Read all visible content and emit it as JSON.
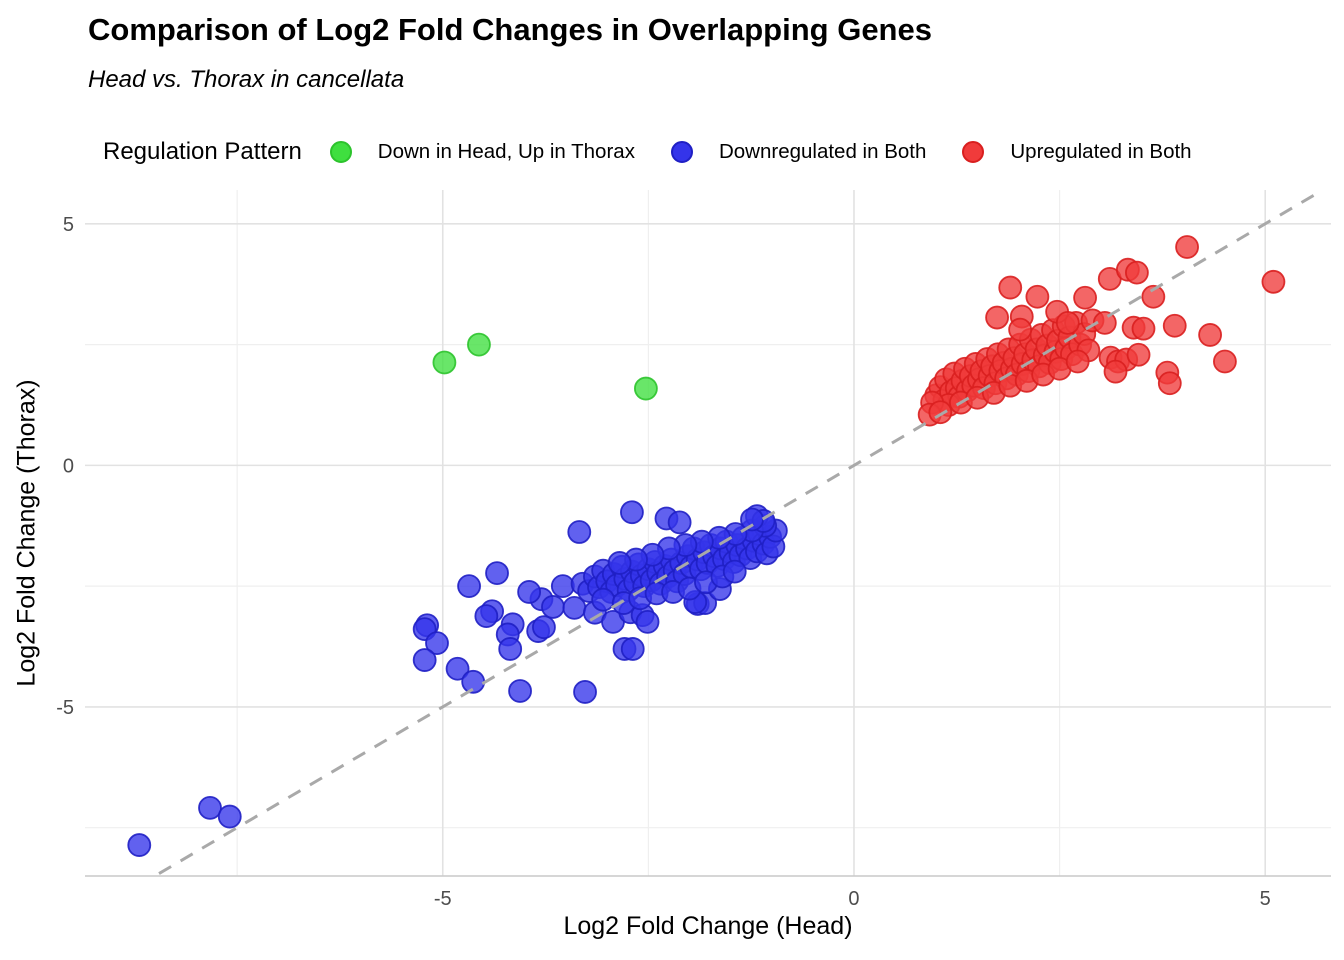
{
  "title": "Comparison of Log2 Fold Changes in Overlapping Genes",
  "subtitle": "Head vs. Thorax in cancellata",
  "legend": {
    "title": "Regulation Pattern",
    "items": [
      {
        "label": "Down in Head, Up in Thorax",
        "fill": "#3fdf3f",
        "stroke": "#2cc32c"
      },
      {
        "label": "Downregulated in Both",
        "fill": "#3434ea",
        "stroke": "#1f1fc4"
      },
      {
        "label": "Upregulated in Both",
        "fill": "#f03b3b",
        "stroke": "#d91f1f"
      }
    ]
  },
  "chart_data": {
    "type": "scatter",
    "title": "Comparison of Log2 Fold Changes in Overlapping Genes",
    "subtitle": "Head vs. Thorax in cancellata",
    "xlabel": "Log2 Fold Change (Head)",
    "ylabel": "Log2 Fold Change (Thorax)",
    "xlim": [
      -9.35,
      5.8
    ],
    "ylim": [
      -8.5,
      5.7
    ],
    "x_ticks": [
      -5,
      0,
      5
    ],
    "x_tick_labels": [
      "-5",
      "0",
      "5"
    ],
    "y_ticks": [
      5,
      0,
      -5
    ],
    "y_tick_labels": [
      "5",
      "0",
      "-5"
    ],
    "x_minor_ticks": [
      -7.5,
      -2.5,
      2.5
    ],
    "y_minor_ticks": [
      2.5,
      -2.5,
      -7.5
    ],
    "grid": true,
    "grid_major_color": "#e2e2e2",
    "grid_minor_color": "#efefef",
    "axis_line_color": "#c9c9c9",
    "tick_label_color": "#4d4d4d",
    "identity_line": {
      "equation": "y = x",
      "style": "dashed",
      "color": "#a9a9a9",
      "from": -8.45,
      "to": 5.7
    },
    "point_radius": 11,
    "point_fill_opacity": 0.78,
    "legend_position": "top",
    "series": [
      {
        "name": "Down in Head, Up in Thorax",
        "fill": "#3fdf3f",
        "stroke": "#2cc32c",
        "points": [
          [
            -4.98,
            2.13
          ],
          [
            -4.56,
            2.5
          ],
          [
            -2.53,
            1.59
          ]
        ]
      },
      {
        "name": "Downregulated in Both",
        "fill": "#3434ea",
        "stroke": "#1f1fc4",
        "points": [
          [
            -8.69,
            -7.86
          ],
          [
            -7.83,
            -7.09
          ],
          [
            -7.59,
            -7.27
          ],
          [
            -5.19,
            -3.31
          ],
          [
            -5.22,
            -3.39
          ],
          [
            -5.07,
            -3.68
          ],
          [
            -5.22,
            -4.03
          ],
          [
            -4.82,
            -4.21
          ],
          [
            -4.63,
            -4.48
          ],
          [
            -4.68,
            -2.5
          ],
          [
            -4.34,
            -2.23
          ],
          [
            -4.4,
            -3.02
          ],
          [
            -4.47,
            -3.12
          ],
          [
            -4.15,
            -3.29
          ],
          [
            -4.21,
            -3.5
          ],
          [
            -4.18,
            -3.8
          ],
          [
            -4.06,
            -4.67
          ],
          [
            -3.84,
            -3.43
          ],
          [
            -3.77,
            -3.35
          ],
          [
            -3.27,
            -4.69
          ],
          [
            -3.8,
            -2.77
          ],
          [
            -3.66,
            -2.93
          ],
          [
            -3.54,
            -2.5
          ],
          [
            -3.95,
            -2.62
          ],
          [
            -3.4,
            -2.95
          ],
          [
            -3.15,
            -3.05
          ],
          [
            -2.93,
            -3.24
          ],
          [
            -2.72,
            -3.04
          ],
          [
            -2.57,
            -3.1
          ],
          [
            -2.51,
            -3.24
          ],
          [
            -2.79,
            -3.8
          ],
          [
            -2.69,
            -3.8
          ],
          [
            -1.9,
            -2.87
          ],
          [
            -1.81,
            -2.85
          ],
          [
            -1.93,
            -2.83
          ],
          [
            -1.63,
            -2.56
          ],
          [
            -2.7,
            -0.97
          ],
          [
            -3.34,
            -1.38
          ],
          [
            -2.28,
            -1.1
          ],
          [
            -2.12,
            -1.18
          ],
          [
            -3.3,
            -2.45
          ],
          [
            -3.22,
            -2.6
          ],
          [
            -3.15,
            -2.3
          ],
          [
            -3.1,
            -2.52
          ],
          [
            -3.05,
            -2.18
          ],
          [
            -3.0,
            -2.4
          ],
          [
            -2.95,
            -2.62
          ],
          [
            -2.92,
            -2.25
          ],
          [
            -2.88,
            -2.48
          ],
          [
            -2.82,
            -2.1
          ],
          [
            -2.78,
            -2.35
          ],
          [
            -2.74,
            -2.58
          ],
          [
            -2.7,
            -2.2
          ],
          [
            -2.66,
            -2.42
          ],
          [
            -2.62,
            -2.05
          ],
          [
            -2.58,
            -2.28
          ],
          [
            -2.55,
            -2.5
          ],
          [
            -2.5,
            -2.15
          ],
          [
            -2.46,
            -2.38
          ],
          [
            -2.42,
            -2.0
          ],
          [
            -2.38,
            -2.22
          ],
          [
            -2.35,
            -2.45
          ],
          [
            -2.3,
            -2.08
          ],
          [
            -2.26,
            -2.3
          ],
          [
            -2.22,
            -1.95
          ],
          [
            -2.18,
            -2.18
          ],
          [
            -2.15,
            -2.4
          ],
          [
            -2.1,
            -2.02
          ],
          [
            -2.06,
            -2.25
          ],
          [
            -2.02,
            -1.88
          ],
          [
            -1.98,
            -2.1
          ],
          [
            -1.95,
            -1.72
          ],
          [
            -1.9,
            -1.95
          ],
          [
            -1.86,
            -2.15
          ],
          [
            -1.82,
            -1.8
          ],
          [
            -1.78,
            -2.02
          ],
          [
            -1.74,
            -1.65
          ],
          [
            -1.7,
            -1.88
          ],
          [
            -1.66,
            -2.08
          ],
          [
            -1.62,
            -1.72
          ],
          [
            -1.58,
            -1.94
          ],
          [
            -1.55,
            -1.58
          ],
          [
            -1.5,
            -1.8
          ],
          [
            -1.46,
            -2.0
          ],
          [
            -1.42,
            -1.65
          ],
          [
            -1.38,
            -1.86
          ],
          [
            -1.35,
            -1.5
          ],
          [
            -1.3,
            -1.72
          ],
          [
            -1.26,
            -1.92
          ],
          [
            -1.22,
            -1.56
          ],
          [
            -1.18,
            -1.78
          ],
          [
            -1.15,
            -1.42
          ],
          [
            -1.1,
            -1.62
          ],
          [
            -1.06,
            -1.82
          ],
          [
            -1.02,
            -1.48
          ],
          [
            -0.98,
            -1.68
          ],
          [
            -0.95,
            -1.35
          ],
          [
            -1.08,
            -1.25
          ],
          [
            -1.24,
            -1.35
          ],
          [
            -1.44,
            -1.42
          ],
          [
            -1.64,
            -1.5
          ],
          [
            -1.85,
            -1.58
          ],
          [
            -2.05,
            -1.65
          ],
          [
            -2.25,
            -1.72
          ],
          [
            -2.45,
            -1.85
          ],
          [
            -2.65,
            -1.95
          ],
          [
            -2.85,
            -2.02
          ],
          [
            -3.05,
            -2.78
          ],
          [
            -2.8,
            -2.85
          ],
          [
            -2.6,
            -2.75
          ],
          [
            -2.4,
            -2.65
          ],
          [
            -2.2,
            -2.62
          ],
          [
            -2.0,
            -2.55
          ],
          [
            -1.8,
            -2.42
          ],
          [
            -1.6,
            -2.3
          ],
          [
            -1.45,
            -2.2
          ],
          [
            -1.18,
            -1.05
          ],
          [
            -1.1,
            -1.15
          ],
          [
            -1.24,
            -1.12
          ]
        ]
      },
      {
        "name": "Upregulated in Both",
        "fill": "#f03b3b",
        "stroke": "#d91f1f",
        "points": [
          [
            1.0,
            1.45
          ],
          [
            1.05,
            1.62
          ],
          [
            1.1,
            1.35
          ],
          [
            1.12,
            1.78
          ],
          [
            1.18,
            1.52
          ],
          [
            1.22,
            1.9
          ],
          [
            1.25,
            1.6
          ],
          [
            1.28,
            1.42
          ],
          [
            1.32,
            1.75
          ],
          [
            1.35,
            2.0
          ],
          [
            1.38,
            1.55
          ],
          [
            1.42,
            1.85
          ],
          [
            1.45,
            1.65
          ],
          [
            1.48,
            2.1
          ],
          [
            1.52,
            1.78
          ],
          [
            1.55,
            1.95
          ],
          [
            1.58,
            1.6
          ],
          [
            1.62,
            2.2
          ],
          [
            1.65,
            1.85
          ],
          [
            1.68,
            2.05
          ],
          [
            1.72,
            1.7
          ],
          [
            1.75,
            2.3
          ],
          [
            1.78,
            1.95
          ],
          [
            1.82,
            2.12
          ],
          [
            1.85,
            1.8
          ],
          [
            1.88,
            2.4
          ],
          [
            1.92,
            2.0
          ],
          [
            1.95,
            2.22
          ],
          [
            1.98,
            1.88
          ],
          [
            2.02,
            2.5
          ],
          [
            2.05,
            2.1
          ],
          [
            2.08,
            2.3
          ],
          [
            2.12,
            1.95
          ],
          [
            2.15,
            2.6
          ],
          [
            2.18,
            2.18
          ],
          [
            2.22,
            2.4
          ],
          [
            2.25,
            2.05
          ],
          [
            2.28,
            2.7
          ],
          [
            2.32,
            2.28
          ],
          [
            2.35,
            2.48
          ],
          [
            2.38,
            2.12
          ],
          [
            2.42,
            2.8
          ],
          [
            2.45,
            2.35
          ],
          [
            2.48,
            2.58
          ],
          [
            2.52,
            2.2
          ],
          [
            2.55,
            2.88
          ],
          [
            2.58,
            2.42
          ],
          [
            2.62,
            2.65
          ],
          [
            2.65,
            2.3
          ],
          [
            2.7,
            2.95
          ],
          [
            2.75,
            2.5
          ],
          [
            2.8,
            2.72
          ],
          [
            2.85,
            2.38
          ],
          [
            2.9,
            3.0
          ],
          [
            1.15,
            1.25
          ],
          [
            1.3,
            1.3
          ],
          [
            1.5,
            1.4
          ],
          [
            1.7,
            1.5
          ],
          [
            1.9,
            1.65
          ],
          [
            2.1,
            1.75
          ],
          [
            2.3,
            1.88
          ],
          [
            2.5,
            2.0
          ],
          [
            2.72,
            2.15
          ],
          [
            0.95,
            1.3
          ],
          [
            0.92,
            1.05
          ],
          [
            1.05,
            1.1
          ],
          [
            1.9,
            3.68
          ],
          [
            2.23,
            3.49
          ],
          [
            2.81,
            3.47
          ],
          [
            1.74,
            3.06
          ],
          [
            2.04,
            3.08
          ],
          [
            2.47,
            3.18
          ],
          [
            2.6,
            2.95
          ],
          [
            2.02,
            2.81
          ],
          [
            3.11,
            3.86
          ],
          [
            3.33,
            4.05
          ],
          [
            3.44,
            3.99
          ],
          [
            3.64,
            3.49
          ],
          [
            4.05,
            4.52
          ],
          [
            5.1,
            3.8
          ],
          [
            3.05,
            2.95
          ],
          [
            3.4,
            2.85
          ],
          [
            3.52,
            2.83
          ],
          [
            3.9,
            2.89
          ],
          [
            4.33,
            2.7
          ],
          [
            3.12,
            2.23
          ],
          [
            3.21,
            2.15
          ],
          [
            3.31,
            2.19
          ],
          [
            3.46,
            2.29
          ],
          [
            3.18,
            1.94
          ],
          [
            3.81,
            1.92
          ],
          [
            4.51,
            2.15
          ],
          [
            3.84,
            1.7
          ]
        ]
      }
    ]
  }
}
